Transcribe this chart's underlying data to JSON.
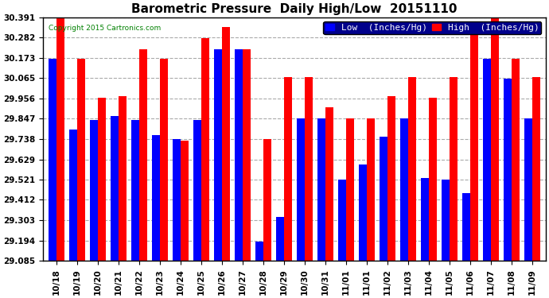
{
  "title": "Barometric Pressure  Daily High/Low  20151110",
  "copyright": "Copyright 2015 Cartronics.com",
  "legend_low": "Low  (Inches/Hg)",
  "legend_high": "High  (Inches/Hg)",
  "dates": [
    "10/18",
    "10/19",
    "10/20",
    "10/21",
    "10/22",
    "10/23",
    "10/24",
    "10/25",
    "10/26",
    "10/27",
    "10/28",
    "10/29",
    "10/30",
    "10/31",
    "11/01",
    "11/01",
    "11/02",
    "11/03",
    "11/04",
    "11/05",
    "11/06",
    "11/07",
    "11/08",
    "11/09"
  ],
  "low_values": [
    30.17,
    29.79,
    29.84,
    29.86,
    29.84,
    29.76,
    29.74,
    29.84,
    30.22,
    30.22,
    29.19,
    29.32,
    29.85,
    29.85,
    29.52,
    29.6,
    29.75,
    29.85,
    29.53,
    29.52,
    29.45,
    30.17,
    30.06,
    29.85
  ],
  "high_values": [
    30.39,
    30.17,
    29.96,
    29.97,
    30.22,
    30.17,
    29.73,
    30.28,
    30.34,
    30.22,
    29.74,
    30.07,
    30.07,
    29.91,
    29.85,
    29.85,
    29.97,
    30.07,
    29.96,
    30.07,
    30.34,
    30.39,
    30.17,
    30.07
  ],
  "ymin": 29.085,
  "ymax": 30.391,
  "yticks": [
    29.085,
    29.194,
    29.303,
    29.412,
    29.521,
    29.629,
    29.738,
    29.847,
    29.956,
    30.065,
    30.173,
    30.282,
    30.391
  ],
  "low_color": "#0000ff",
  "high_color": "#ff0000",
  "bg_color": "#ffffff",
  "plot_bg_color": "#ffffff",
  "grid_color": "#aaaaaa",
  "bar_width": 0.38,
  "title_fontsize": 11,
  "tick_fontsize": 7.5,
  "legend_fontsize": 8
}
